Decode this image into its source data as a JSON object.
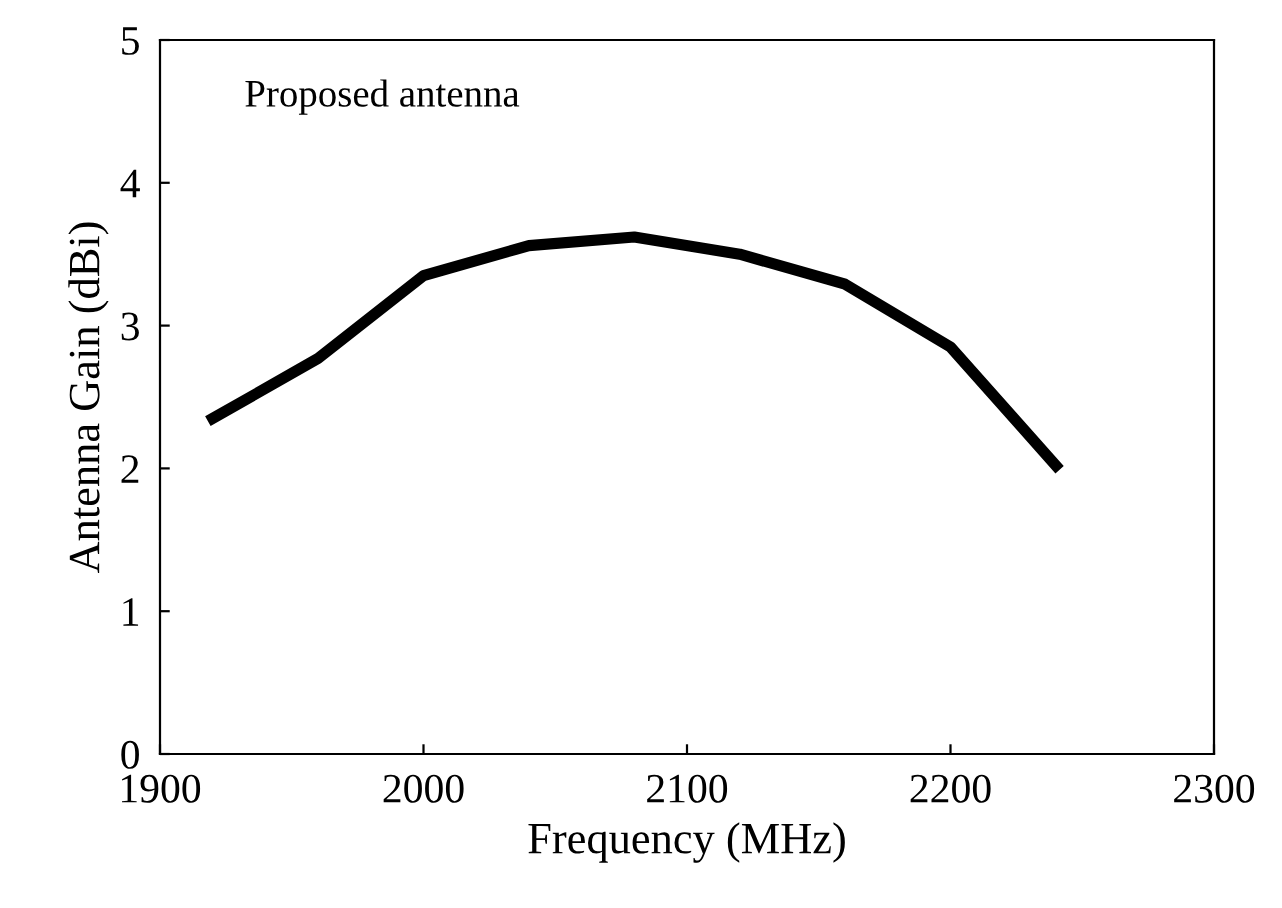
{
  "chart_data": {
    "type": "line",
    "xlabel": "Frequency (MHz)",
    "ylabel": "Antenna Gain (dBi)",
    "annotations": [
      "Proposed antenna"
    ],
    "x": [
      1920,
      1960,
      2000,
      2040,
      2080,
      2120,
      2160,
      2200,
      2240
    ],
    "series": [
      {
        "color": "#000000",
        "values": [
          2.35,
          2.77,
          3.35,
          3.56,
          3.62,
          3.5,
          3.29,
          2.85,
          2.02
        ]
      }
    ],
    "xlim": [
      1900,
      2300
    ],
    "xticks": [
      1900,
      2000,
      2100,
      2200,
      2300
    ],
    "ylim": [
      0,
      5
    ],
    "yticks": [
      0,
      1,
      2,
      3,
      4,
      5
    ],
    "grid": false,
    "marker": "none",
    "line_style": "solid"
  }
}
